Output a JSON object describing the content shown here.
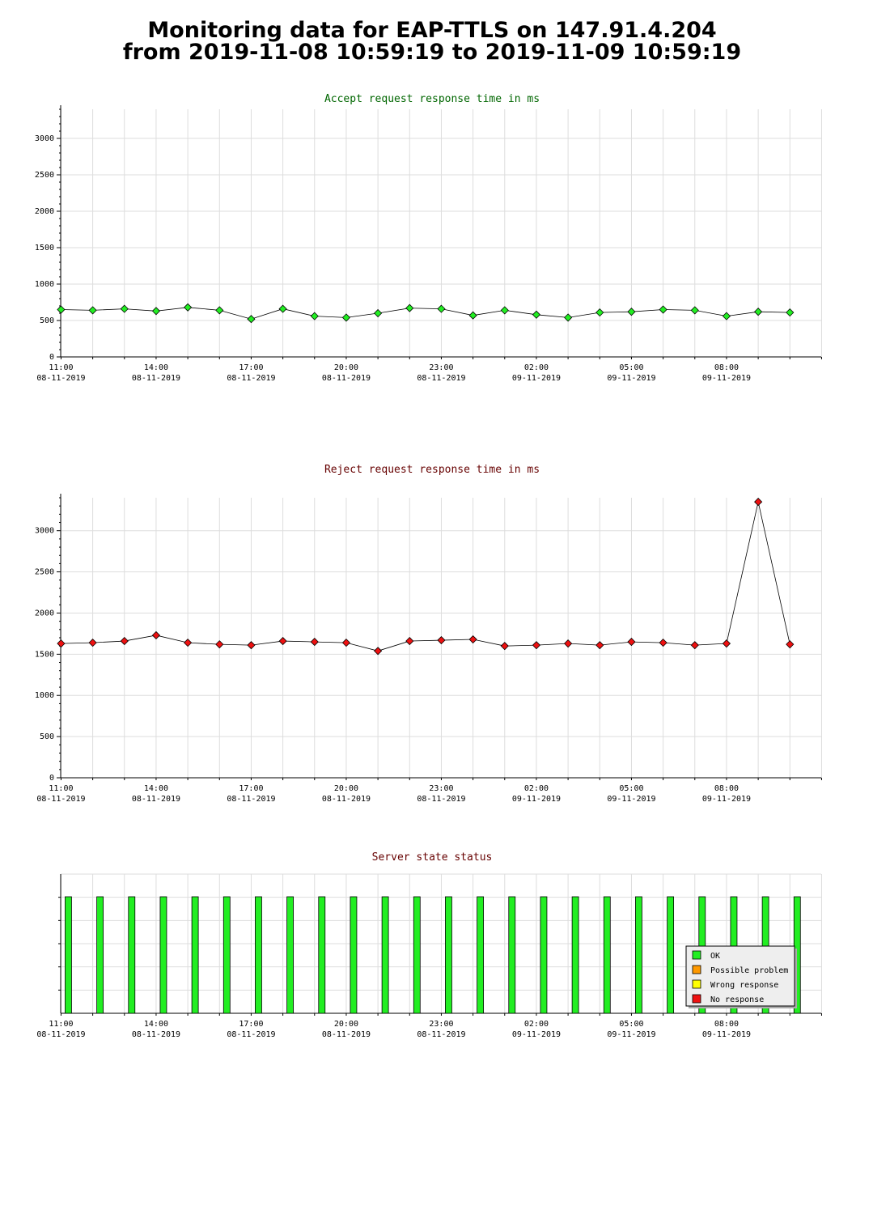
{
  "header": {
    "title_line1": "Monitoring data for EAP-TTLS on 147.91.4.204",
    "title_line2": "from 2019-11-08 10:59:19 to 2019-11-09 10:59:19"
  },
  "colors": {
    "accept_title": "#006600",
    "reject_title": "#660000",
    "status_title": "#660000",
    "accept_marker": "#22ee22",
    "reject_marker": "#ee1111",
    "ok": "#22ee22",
    "possible_problem": "#ff9900",
    "wrong_response": "#ffff00",
    "no_response": "#ee1111",
    "grid": "#dddddd"
  },
  "x_axis_ticks": [
    {
      "time": "11:00",
      "date": "08-11-2019"
    },
    {
      "time": "14:00",
      "date": "08-11-2019"
    },
    {
      "time": "17:00",
      "date": "08-11-2019"
    },
    {
      "time": "20:00",
      "date": "08-11-2019"
    },
    {
      "time": "23:00",
      "date": "08-11-2019"
    },
    {
      "time": "02:00",
      "date": "09-11-2019"
    },
    {
      "time": "05:00",
      "date": "09-11-2019"
    },
    {
      "time": "08:00",
      "date": "09-11-2019"
    }
  ],
  "chart_data": [
    {
      "type": "line",
      "title": "Accept request response time in ms",
      "ylim": [
        0,
        3400
      ],
      "yticks": [
        0,
        500,
        1000,
        1500,
        2000,
        2500,
        3000
      ],
      "grid": true,
      "series": [
        {
          "marker": "diamond",
          "x": [
            "2019-11-08 11:00",
            "2019-11-08 12:00",
            "2019-11-08 13:00",
            "2019-11-08 14:00",
            "2019-11-08 15:00",
            "2019-11-08 16:00",
            "2019-11-08 17:00",
            "2019-11-08 18:00",
            "2019-11-08 19:00",
            "2019-11-08 20:00",
            "2019-11-08 21:00",
            "2019-11-08 22:00",
            "2019-11-08 23:00",
            "2019-11-09 00:00",
            "2019-11-09 01:00",
            "2019-11-09 02:00",
            "2019-11-09 03:00",
            "2019-11-09 04:00",
            "2019-11-09 05:00",
            "2019-11-09 06:00",
            "2019-11-09 07:00",
            "2019-11-09 08:00",
            "2019-11-09 09:00",
            "2019-11-09 10:00"
          ],
          "values": [
            650,
            640,
            660,
            630,
            680,
            640,
            520,
            660,
            560,
            540,
            600,
            670,
            660,
            570,
            640,
            580,
            540,
            610,
            620,
            650,
            640,
            560,
            620,
            610
          ]
        }
      ]
    },
    {
      "type": "line",
      "title": "Reject request response time in ms",
      "ylim": [
        0,
        3400
      ],
      "yticks": [
        0,
        500,
        1000,
        1500,
        2000,
        2500,
        3000
      ],
      "grid": true,
      "series": [
        {
          "marker": "diamond",
          "x": [
            "2019-11-08 11:00",
            "2019-11-08 12:00",
            "2019-11-08 13:00",
            "2019-11-08 14:00",
            "2019-11-08 15:00",
            "2019-11-08 16:00",
            "2019-11-08 17:00",
            "2019-11-08 18:00",
            "2019-11-08 19:00",
            "2019-11-08 20:00",
            "2019-11-08 21:00",
            "2019-11-08 22:00",
            "2019-11-08 23:00",
            "2019-11-09 00:00",
            "2019-11-09 01:00",
            "2019-11-09 02:00",
            "2019-11-09 03:00",
            "2019-11-09 04:00",
            "2019-11-09 05:00",
            "2019-11-09 06:00",
            "2019-11-09 07:00",
            "2019-11-09 08:00",
            "2019-11-09 09:00",
            "2019-11-09 10:00"
          ],
          "values": [
            1630,
            1640,
            1660,
            1730,
            1640,
            1620,
            1610,
            1660,
            1650,
            1640,
            1540,
            1660,
            1670,
            1680,
            1600,
            1610,
            1630,
            1610,
            1650,
            1640,
            1610,
            1630,
            3350,
            1620
          ]
        }
      ]
    },
    {
      "type": "bar",
      "title": "Server state status",
      "legend_position": "bottom-right",
      "legend": [
        "OK",
        "Possible problem",
        "Wrong response",
        "No response"
      ],
      "x": [
        "2019-11-08 11:00",
        "2019-11-08 12:00",
        "2019-11-08 13:00",
        "2019-11-08 14:00",
        "2019-11-08 15:00",
        "2019-11-08 16:00",
        "2019-11-08 17:00",
        "2019-11-08 18:00",
        "2019-11-08 19:00",
        "2019-11-08 20:00",
        "2019-11-08 21:00",
        "2019-11-08 22:00",
        "2019-11-08 23:00",
        "2019-11-09 00:00",
        "2019-11-09 01:00",
        "2019-11-09 02:00",
        "2019-11-09 03:00",
        "2019-11-09 04:00",
        "2019-11-09 05:00",
        "2019-11-09 06:00",
        "2019-11-09 07:00",
        "2019-11-09 08:00",
        "2019-11-09 09:00",
        "2019-11-09 10:00"
      ],
      "states": [
        "OK",
        "OK",
        "OK",
        "OK",
        "OK",
        "OK",
        "OK",
        "OK",
        "OK",
        "OK",
        "OK",
        "OK",
        "OK",
        "OK",
        "OK",
        "OK",
        "OK",
        "OK",
        "OK",
        "OK",
        "OK",
        "OK",
        "OK",
        "OK"
      ]
    }
  ]
}
